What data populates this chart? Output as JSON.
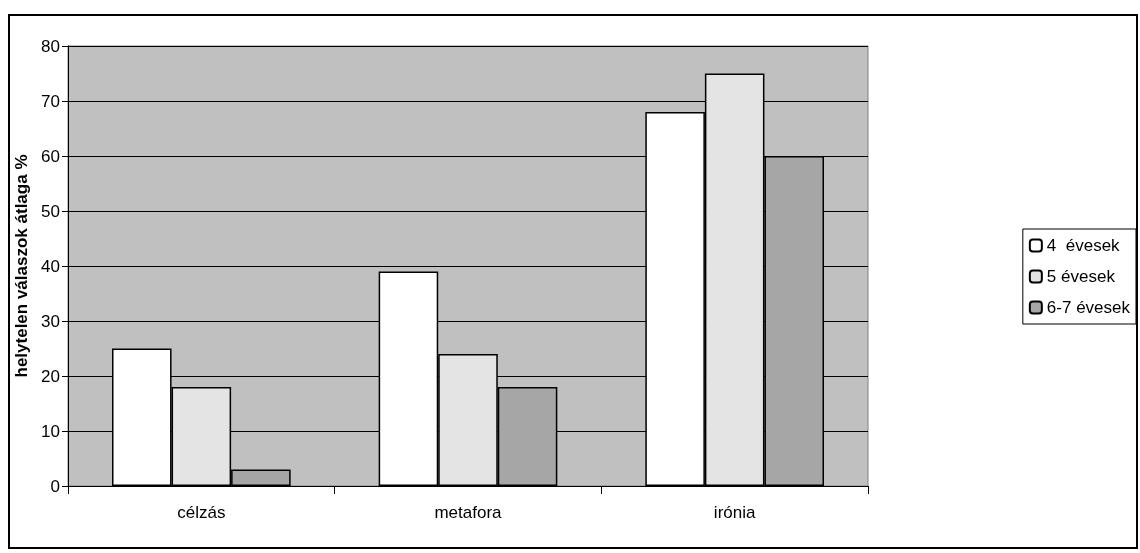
{
  "chart_data": {
    "type": "bar",
    "ylabel": "helytelen válaszok átlaga %",
    "categories": [
      "célzás",
      "metafora",
      "irónia"
    ],
    "series": [
      {
        "name": "4  évesek",
        "color": "#ffffff",
        "values": [
          25,
          39,
          68
        ]
      },
      {
        "name": "5 évesek",
        "color": "#e4e4e4",
        "values": [
          18,
          24,
          75
        ]
      },
      {
        "name": "6-7 évesek",
        "color": "#a6a6a6",
        "values": [
          3,
          18,
          60
        ]
      }
    ],
    "ylim": [
      0,
      80
    ],
    "yticks": [
      0,
      10,
      20,
      30,
      40,
      50,
      60,
      70,
      80
    ],
    "grid": "y",
    "legend": "right"
  }
}
